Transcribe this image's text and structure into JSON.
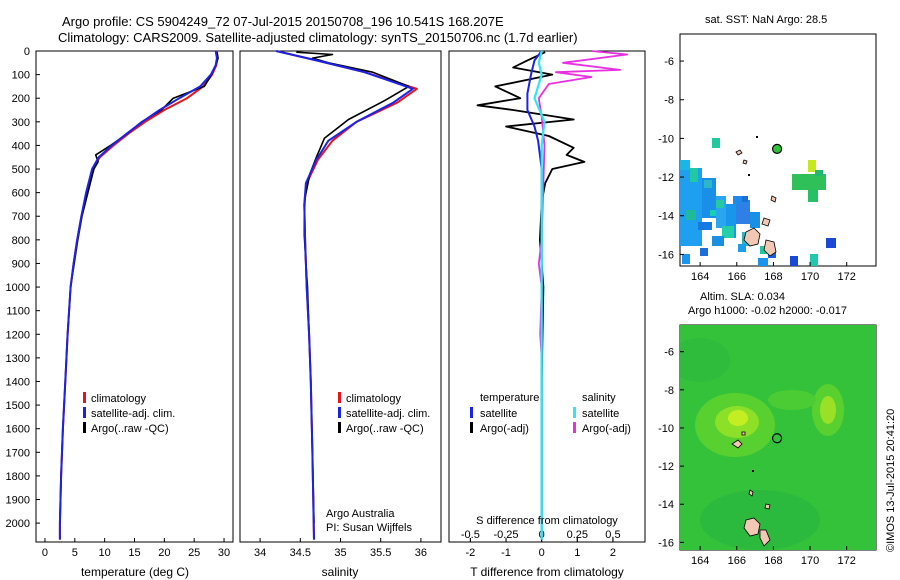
{
  "header": {
    "line1": "Argo profile: CS 5904249_72 07-Jul-2015 20150708_196 10.541S 168.207E",
    "line2": "Climatology: CARS2009. Satellite-adjusted climatology: synTS_20150706.nc (1.7d earlier)"
  },
  "colors": {
    "clim": "#e8141c",
    "sat": "#1a23e6",
    "argo": "#000000",
    "sat_s": "#2ee8f0",
    "argo_s": "#e830e0",
    "land": "#f0c8b4",
    "ocean": "#2fc33a"
  },
  "depth_axis": {
    "ticks": [
      0,
      100,
      200,
      300,
      400,
      500,
      600,
      700,
      800,
      900,
      1000,
      1100,
      1200,
      1300,
      1400,
      1500,
      1600,
      1700,
      1800,
      1900,
      2000
    ],
    "range": [
      0,
      2080
    ]
  },
  "panels": {
    "temperature": {
      "xlabel": "temperature (deg C)",
      "xticks": [
        0,
        5,
        10,
        15,
        20,
        25,
        30
      ],
      "xrange": [
        -1.5,
        31.5
      ],
      "legend": [
        "climatology",
        "satellite-adj. clim.",
        "Argo(..raw -QC)"
      ],
      "series": {
        "clim": [
          [
            28.8,
            0
          ],
          [
            28.9,
            30
          ],
          [
            28.7,
            60
          ],
          [
            28.0,
            100
          ],
          [
            26.5,
            150
          ],
          [
            23.8,
            200
          ],
          [
            20.0,
            250
          ],
          [
            16.8,
            300
          ],
          [
            14.0,
            350
          ],
          [
            11.5,
            400
          ],
          [
            9.2,
            450
          ],
          [
            8.0,
            500
          ],
          [
            7.0,
            600
          ],
          [
            6.1,
            700
          ],
          [
            5.4,
            800
          ],
          [
            4.8,
            900
          ],
          [
            4.3,
            1000
          ],
          [
            3.8,
            1200
          ],
          [
            3.4,
            1400
          ],
          [
            3.0,
            1600
          ],
          [
            2.7,
            1800
          ],
          [
            2.5,
            2000
          ],
          [
            2.5,
            2070
          ]
        ],
        "sat": [
          [
            28.6,
            0
          ],
          [
            28.8,
            30
          ],
          [
            28.6,
            60
          ],
          [
            27.8,
            100
          ],
          [
            26.0,
            150
          ],
          [
            22.5,
            200
          ],
          [
            19.2,
            250
          ],
          [
            16.3,
            300
          ],
          [
            13.7,
            350
          ],
          [
            11.2,
            400
          ],
          [
            9.0,
            450
          ],
          [
            7.9,
            500
          ],
          [
            6.9,
            600
          ],
          [
            6.1,
            700
          ],
          [
            5.4,
            800
          ],
          [
            4.8,
            900
          ],
          [
            4.3,
            1000
          ],
          [
            3.8,
            1200
          ],
          [
            3.4,
            1400
          ],
          [
            3.0,
            1600
          ],
          [
            2.7,
            1800
          ],
          [
            2.5,
            2000
          ],
          [
            2.5,
            2070
          ]
        ],
        "argo": [
          [
            28.8,
            5
          ],
          [
            29.0,
            30
          ],
          [
            28.6,
            60
          ],
          [
            27.9,
            100
          ],
          [
            26.7,
            150
          ],
          [
            21.5,
            200
          ],
          [
            19.5,
            250
          ],
          [
            16.2,
            300
          ],
          [
            13.8,
            350
          ],
          [
            11.0,
            400
          ],
          [
            8.5,
            440
          ],
          [
            8.9,
            470
          ],
          [
            8.2,
            500
          ],
          [
            7.2,
            600
          ],
          [
            6.2,
            700
          ],
          [
            5.5,
            800
          ],
          [
            4.9,
            900
          ],
          [
            4.3,
            1000
          ],
          [
            3.8,
            1200
          ],
          [
            3.4,
            1400
          ],
          [
            3.0,
            1600
          ],
          [
            2.7,
            1800
          ],
          [
            2.5,
            2000
          ]
        ]
      }
    },
    "salinity": {
      "xlabel": "salinity",
      "xticks": [
        34,
        34.5,
        35,
        35.5,
        36
      ],
      "xtick_labels": [
        "34",
        "34.5",
        "35",
        "35.5",
        "36"
      ],
      "xrange": [
        33.75,
        36.25
      ],
      "legend": [
        "climatology",
        "satellite-adj. clim.",
        "Argo(..raw -QC)"
      ],
      "credit1": "Argo Australia",
      "credit2": "PI: Susan Wijffels",
      "series": {
        "clim": [
          [
            34.2,
            0
          ],
          [
            34.7,
            40
          ],
          [
            35.3,
            90
          ],
          [
            35.95,
            160
          ],
          [
            35.7,
            220
          ],
          [
            35.2,
            300
          ],
          [
            34.9,
            380
          ],
          [
            34.72,
            460
          ],
          [
            34.58,
            560
          ],
          [
            34.55,
            650
          ],
          [
            34.56,
            800
          ],
          [
            34.58,
            1000
          ],
          [
            34.61,
            1200
          ],
          [
            34.63,
            1400
          ],
          [
            34.65,
            1700
          ],
          [
            34.67,
            2070
          ]
        ],
        "sat": [
          [
            34.2,
            0
          ],
          [
            34.7,
            40
          ],
          [
            35.3,
            90
          ],
          [
            35.9,
            160
          ],
          [
            35.65,
            220
          ],
          [
            35.2,
            300
          ],
          [
            34.85,
            380
          ],
          [
            34.7,
            460
          ],
          [
            34.57,
            560
          ],
          [
            34.55,
            650
          ],
          [
            34.56,
            800
          ],
          [
            34.58,
            1000
          ],
          [
            34.61,
            1200
          ],
          [
            34.63,
            1400
          ],
          [
            34.65,
            1700
          ],
          [
            34.67,
            2070
          ]
        ],
        "argo": [
          [
            34.45,
            5
          ],
          [
            34.9,
            15
          ],
          [
            34.65,
            30
          ],
          [
            34.85,
            50
          ],
          [
            35.4,
            90
          ],
          [
            35.85,
            150
          ],
          [
            35.55,
            210
          ],
          [
            35.1,
            290
          ],
          [
            34.8,
            370
          ],
          [
            34.7,
            450
          ],
          [
            34.62,
            520
          ],
          [
            34.56,
            620
          ],
          [
            34.55,
            700
          ],
          [
            34.55,
            780
          ],
          [
            34.57,
            900
          ],
          [
            34.59,
            1000
          ],
          [
            34.61,
            1200
          ],
          [
            34.63,
            1400
          ],
          [
            34.65,
            1700
          ],
          [
            34.67,
            2000
          ]
        ]
      }
    },
    "difference": {
      "xlabel_top": "S difference from climatology",
      "xlabel_bottom": "T difference from climatology",
      "t_ticks": [
        -2,
        -1,
        0,
        1,
        2
      ],
      "t_range": [
        -2.6,
        2.9
      ],
      "s_ticks": [
        -0.5,
        -0.25,
        0,
        0.25,
        0.5
      ],
      "s_tick_labels": [
        "-0.5",
        "-0.25",
        "0",
        "0.25",
        "0.5"
      ],
      "s_range": [
        -0.65,
        0.725
      ],
      "legend_t_title": "temperature",
      "legend_s_title": "salinity",
      "legend_t": [
        "satellite",
        "Argo(-adj)"
      ],
      "legend_s": [
        "satellite",
        "Argo(-adj)"
      ],
      "series": {
        "t_sat": [
          [
            0.0,
            0
          ],
          [
            -0.2,
            40
          ],
          [
            -0.3,
            100
          ],
          [
            -0.4,
            180
          ],
          [
            -0.4,
            250
          ],
          [
            -0.2,
            320
          ],
          [
            -0.1,
            380
          ],
          [
            0.0,
            500
          ],
          [
            0.0,
            2070
          ]
        ],
        "t_argo": [
          [
            0.1,
            5
          ],
          [
            -0.4,
            40
          ],
          [
            -0.8,
            70
          ],
          [
            0.3,
            100
          ],
          [
            -1.3,
            150
          ],
          [
            -0.6,
            200
          ],
          [
            -1.8,
            230
          ],
          [
            -0.8,
            250
          ],
          [
            0.9,
            290
          ],
          [
            -1.0,
            320
          ],
          [
            0.2,
            360
          ],
          [
            0.9,
            410
          ],
          [
            0.7,
            440
          ],
          [
            1.2,
            470
          ],
          [
            0.3,
            500
          ],
          [
            0.1,
            560
          ],
          [
            0.0,
            640
          ],
          [
            -0.05,
            800
          ],
          [
            0.05,
            1000
          ],
          [
            0.0,
            1400
          ],
          [
            0.0,
            2000
          ]
        ],
        "s_sat": [
          [
            0.0,
            0
          ],
          [
            -0.02,
            50
          ],
          [
            0.0,
            100
          ],
          [
            -0.05,
            200
          ],
          [
            0.02,
            300
          ],
          [
            0.0,
            400
          ],
          [
            0.0,
            2070
          ]
        ],
        "s_argo": [
          [
            0.35,
            0
          ],
          [
            0.6,
            15
          ],
          [
            0.15,
            50
          ],
          [
            0.55,
            80
          ],
          [
            0.1,
            90
          ],
          [
            0.35,
            110
          ],
          [
            0.05,
            140
          ],
          [
            -0.02,
            200
          ],
          [
            0.0,
            280
          ],
          [
            0.02,
            400
          ],
          [
            0.0,
            800
          ],
          [
            -0.02,
            900
          ],
          [
            0.0,
            1000
          ],
          [
            -0.01,
            1200
          ],
          [
            0.0,
            1300
          ]
        ]
      }
    }
  },
  "maps": {
    "sst": {
      "title": "sat. SST: NaN Argo: 28.5",
      "xticks": [
        164,
        166,
        168,
        170,
        172
      ],
      "yticks": [
        -6,
        -8,
        -10,
        -12,
        -14,
        -16
      ],
      "lon_range": [
        162.9,
        173.6
      ],
      "lat_range": [
        -16.6,
        -4.6
      ],
      "profile": {
        "lon": 168.2,
        "lat": -10.54
      }
    },
    "sla": {
      "title1": "Altim. SLA: 0.034",
      "title2": "Argo h1000: -0.02 h2000: -0.017",
      "xticks": [
        164,
        166,
        168,
        170,
        172
      ],
      "yticks": [
        -6,
        -8,
        -10,
        -12,
        -14,
        -16
      ],
      "lon_range": [
        162.9,
        173.6
      ],
      "lat_range": [
        -16.4,
        -4.6
      ],
      "profile": {
        "lon": 168.2,
        "lat": -10.54
      }
    }
  },
  "footer": {
    "stamp": "©IMOS 13-Jul-2015 20:41:20"
  }
}
